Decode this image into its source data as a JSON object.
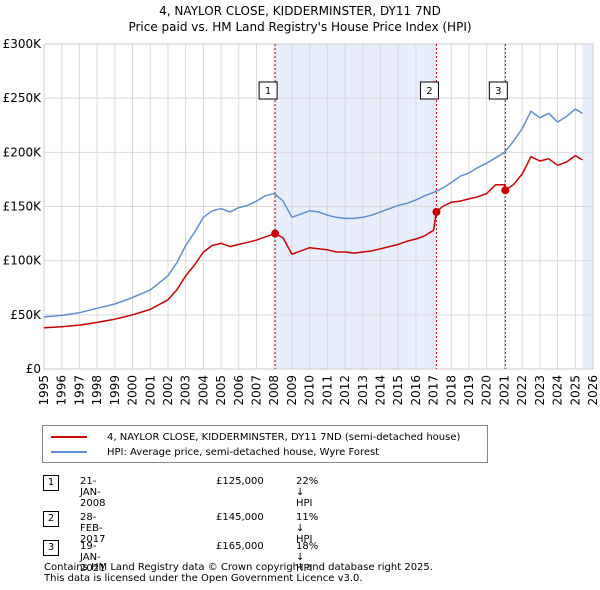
{
  "title_line1": "4, NAYLOR CLOSE, KIDDERMINSTER, DY11 7ND",
  "title_line2": "Price paid vs. HM Land Registry's House Price Index (HPI)",
  "colors": {
    "property": "#cc0000",
    "hpi": "#5b8fd0",
    "shade": "#e8eefc",
    "vline": "#cc0000"
  },
  "legend": {
    "property": "4, NAYLOR CLOSE, KIDDERMINSTER, DY11 7ND (semi-detached house)",
    "hpi": "HPI: Average price, semi-detached house, Wyre Forest"
  },
  "sales": [
    {
      "num": "1",
      "date": "21-JAN-2008",
      "price": "£125,000",
      "hpi": "22% ↓ HPI"
    },
    {
      "num": "2",
      "date": "28-FEB-2017",
      "price": "£145,000",
      "hpi": "11% ↓ HPI"
    },
    {
      "num": "3",
      "date": "19-JAN-2021",
      "price": "£165,000",
      "hpi": "18% ↓ HPI"
    }
  ],
  "footer_line1": "Contains HM Land Registry data © Crown copyright and database right 2025.",
  "footer_line2": "This data is licensed under the Open Government Licence v3.0.",
  "chart_data": {
    "type": "line",
    "title": "4, NAYLOR CLOSE, KIDDERMINSTER, DY11 7ND — Price paid vs. HM Land Registry's House Price Index (HPI)",
    "xlim": [
      1995,
      2026
    ],
    "ylim": [
      0,
      300000
    ],
    "yticks": [
      0,
      50000,
      100000,
      150000,
      200000,
      250000,
      300000
    ],
    "ytick_labels": [
      "£0",
      "£50K",
      "£100K",
      "£150K",
      "£200K",
      "£250K",
      "£300K"
    ],
    "xticks": [
      1995,
      1996,
      1997,
      1998,
      1999,
      2000,
      2001,
      2002,
      2003,
      2004,
      2005,
      2006,
      2007,
      2008,
      2009,
      2010,
      2011,
      2012,
      2013,
      2014,
      2015,
      2016,
      2017,
      2018,
      2019,
      2020,
      2021,
      2022,
      2023,
      2024,
      2025,
      2026
    ],
    "grid": true,
    "series": [
      {
        "name": "4, NAYLOR CLOSE, KIDDERMINSTER, DY11 7ND (semi-detached house)",
        "color": "#cc0000",
        "points": [
          [
            1995.0,
            38000
          ],
          [
            1996.0,
            39000
          ],
          [
            1997.0,
            40500
          ],
          [
            1998.0,
            43000
          ],
          [
            1999.0,
            46000
          ],
          [
            2000.0,
            50000
          ],
          [
            2001.0,
            55000
          ],
          [
            2002.0,
            64000
          ],
          [
            2002.5,
            73000
          ],
          [
            2003.0,
            86000
          ],
          [
            2003.5,
            96000
          ],
          [
            2004.0,
            108000
          ],
          [
            2004.5,
            114000
          ],
          [
            2005.0,
            116000
          ],
          [
            2005.5,
            113000
          ],
          [
            2006.0,
            115000
          ],
          [
            2006.5,
            117000
          ],
          [
            2007.0,
            119000
          ],
          [
            2007.5,
            122000
          ],
          [
            2008.05,
            125000
          ],
          [
            2008.5,
            121000
          ],
          [
            2009.0,
            106000
          ],
          [
            2009.5,
            109000
          ],
          [
            2010.0,
            112000
          ],
          [
            2010.5,
            111000
          ],
          [
            2011.0,
            110000
          ],
          [
            2011.5,
            108000
          ],
          [
            2012.0,
            108000
          ],
          [
            2012.5,
            107000
          ],
          [
            2013.0,
            108000
          ],
          [
            2013.5,
            109000
          ],
          [
            2014.0,
            111000
          ],
          [
            2014.5,
            113000
          ],
          [
            2015.0,
            115000
          ],
          [
            2015.5,
            118000
          ],
          [
            2016.0,
            120000
          ],
          [
            2016.5,
            123000
          ],
          [
            2017.0,
            128000
          ],
          [
            2017.16,
            145000
          ],
          [
            2017.5,
            150000
          ],
          [
            2018.0,
            154000
          ],
          [
            2018.5,
            155000
          ],
          [
            2019.0,
            157000
          ],
          [
            2019.5,
            159000
          ],
          [
            2020.0,
            162000
          ],
          [
            2020.5,
            170000
          ],
          [
            2021.0,
            170000
          ],
          [
            2021.05,
            165000
          ],
          [
            2021.5,
            170000
          ],
          [
            2022.0,
            180000
          ],
          [
            2022.5,
            196000
          ],
          [
            2023.0,
            192000
          ],
          [
            2023.5,
            194000
          ],
          [
            2024.0,
            188000
          ],
          [
            2024.5,
            191000
          ],
          [
            2025.0,
            197000
          ],
          [
            2025.4,
            193000
          ]
        ]
      },
      {
        "name": "HPI: Average price, semi-detached house, Wyre Forest",
        "color": "#5b8fd0",
        "points": [
          [
            1995.0,
            48000
          ],
          [
            1996.0,
            49500
          ],
          [
            1997.0,
            52000
          ],
          [
            1998.0,
            56000
          ],
          [
            1999.0,
            60000
          ],
          [
            2000.0,
            66000
          ],
          [
            2001.0,
            73000
          ],
          [
            2002.0,
            86000
          ],
          [
            2002.5,
            98000
          ],
          [
            2003.0,
            114000
          ],
          [
            2003.5,
            126000
          ],
          [
            2004.0,
            140000
          ],
          [
            2004.5,
            146000
          ],
          [
            2005.0,
            148000
          ],
          [
            2005.5,
            145000
          ],
          [
            2006.0,
            149000
          ],
          [
            2006.5,
            151000
          ],
          [
            2007.0,
            155000
          ],
          [
            2007.5,
            160000
          ],
          [
            2008.0,
            162000
          ],
          [
            2008.5,
            155000
          ],
          [
            2009.0,
            140000
          ],
          [
            2009.5,
            143000
          ],
          [
            2010.0,
            146000
          ],
          [
            2010.5,
            145000
          ],
          [
            2011.0,
            142000
          ],
          [
            2011.5,
            140000
          ],
          [
            2012.0,
            139000
          ],
          [
            2012.5,
            139000
          ],
          [
            2013.0,
            140000
          ],
          [
            2013.5,
            142000
          ],
          [
            2014.0,
            145000
          ],
          [
            2014.5,
            148000
          ],
          [
            2015.0,
            151000
          ],
          [
            2015.5,
            153000
          ],
          [
            2016.0,
            156000
          ],
          [
            2016.5,
            160000
          ],
          [
            2017.0,
            163000
          ],
          [
            2017.5,
            167000
          ],
          [
            2018.0,
            172000
          ],
          [
            2018.5,
            178000
          ],
          [
            2019.0,
            181000
          ],
          [
            2019.5,
            186000
          ],
          [
            2020.0,
            190000
          ],
          [
            2020.5,
            195000
          ],
          [
            2021.0,
            200000
          ],
          [
            2021.5,
            210000
          ],
          [
            2022.0,
            222000
          ],
          [
            2022.5,
            238000
          ],
          [
            2023.0,
            232000
          ],
          [
            2023.5,
            236000
          ],
          [
            2024.0,
            228000
          ],
          [
            2024.5,
            233000
          ],
          [
            2025.0,
            240000
          ],
          [
            2025.4,
            236000
          ]
        ]
      }
    ],
    "sales": [
      {
        "label": "1",
        "x": 2008.05,
        "y": 125000
      },
      {
        "label": "2",
        "x": 2017.16,
        "y": 145000
      },
      {
        "label": "3",
        "x": 2021.05,
        "y": 165000
      }
    ],
    "shaded_ranges": [
      [
        2008.05,
        2017.16
      ],
      [
        2025.4,
        2026
      ]
    ]
  }
}
